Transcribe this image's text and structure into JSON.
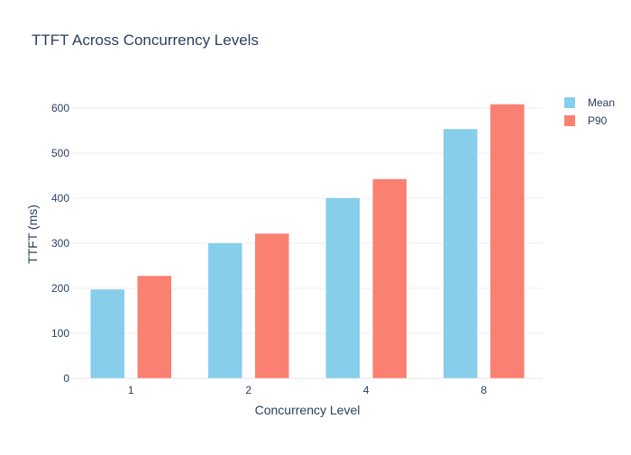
{
  "chart_data": {
    "type": "bar",
    "title": "TTFT Across Concurrency Levels",
    "xlabel": "Concurrency Level",
    "ylabel": "TTFT (ms)",
    "categories": [
      "1",
      "2",
      "4",
      "8"
    ],
    "series": [
      {
        "name": "Mean",
        "color": "#87CEEB",
        "values": [
          198,
          301,
          401,
          554
        ]
      },
      {
        "name": "P90",
        "color": "#FA8072",
        "values": [
          228,
          322,
          443,
          609
        ]
      }
    ],
    "ylim": [
      0,
      640
    ],
    "yticks": [
      0,
      100,
      200,
      300,
      400,
      500,
      600
    ],
    "grid": true,
    "legend_position": "top-right"
  }
}
